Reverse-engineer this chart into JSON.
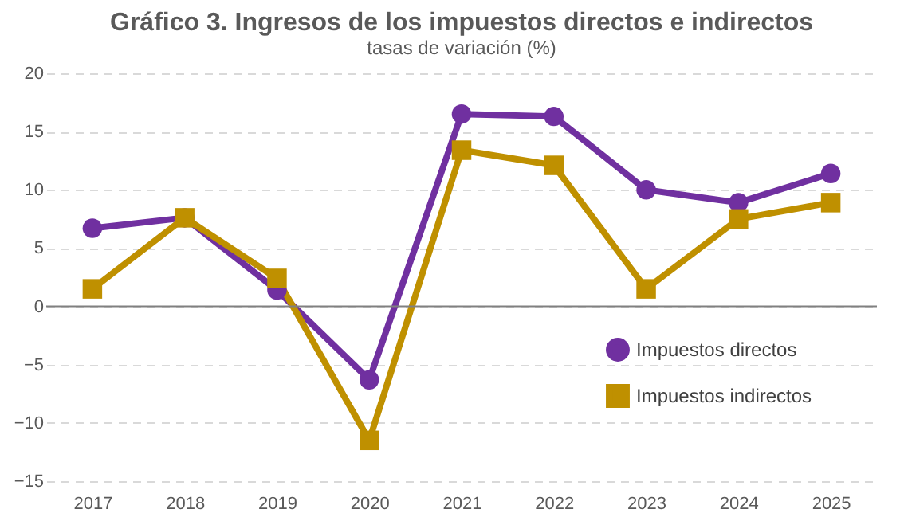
{
  "chart_data": {
    "type": "line",
    "title": "Gráfico 3. Ingresos de los impuestos directos e indirectos",
    "subtitle": "tasas de variación (%)",
    "categories": [
      "2017",
      "2018",
      "2019",
      "2020",
      "2021",
      "2022",
      "2023",
      "2024",
      "2025"
    ],
    "series": [
      {
        "name": "Impuestos directos",
        "color": "#7030a0",
        "marker": "circle",
        "values": [
          6.7,
          7.6,
          1.4,
          -6.3,
          16.5,
          16.3,
          10.0,
          8.9,
          11.4
        ]
      },
      {
        "name": "Impuestos indirectos",
        "color": "#bf9000",
        "marker": "square",
        "values": [
          1.5,
          7.6,
          2.4,
          -11.5,
          13.4,
          12.1,
          1.5,
          7.5,
          8.9
        ]
      }
    ],
    "ylim": [
      -15,
      20
    ],
    "yticks": [
      -15,
      -10,
      -5,
      0,
      5,
      10,
      15,
      20
    ],
    "grid": "y",
    "legend": "bottom right",
    "line_style": "solid",
    "ref_lines": [
      {
        "axis": "y",
        "value": 0,
        "color": "#808080"
      }
    ]
  }
}
